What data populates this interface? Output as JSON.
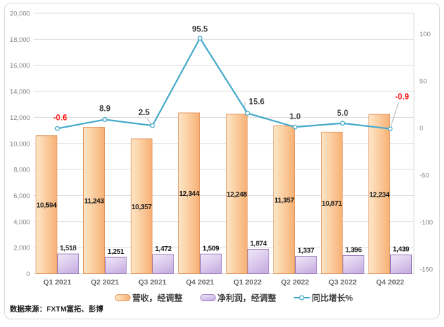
{
  "frame": {
    "background": "#ffffff",
    "border_color": "#d9d9d9"
  },
  "chart_data": {
    "type": "bar",
    "subtype": "combo-bar-line-dual-axis",
    "categories": [
      "Q1 2021",
      "Q2 2021",
      "Q3 2021",
      "Q4 2021",
      "Q1 2022",
      "Q2 2022",
      "Q3 2022",
      "Q4 2022"
    ],
    "series": [
      {
        "name": "营收，经调整",
        "type": "bar",
        "axis": "left",
        "values": [
          10594,
          11243,
          10357,
          12344,
          12248,
          11357,
          10871,
          12234
        ],
        "labels": [
          "10,594",
          "11,243",
          "10,357",
          "12,344",
          "12,248",
          "11,357",
          "10,871",
          "12,234"
        ],
        "fill_from": "#fde6c8",
        "fill_mid": "#fbcfa2",
        "fill_to": "#f7b075",
        "border": "#e2945b"
      },
      {
        "name": "净利润，经调整",
        "type": "bar",
        "axis": "left",
        "values": [
          1518,
          1251,
          1472,
          1509,
          1874,
          1337,
          1396,
          1439
        ],
        "labels": [
          "1,518",
          "1,251",
          "1,472",
          "1,509",
          "1,874",
          "1,337",
          "1,396",
          "1,439"
        ],
        "fill_from": "#efe8f7",
        "fill_mid": "#ddccee",
        "fill_to": "#c9b2e2",
        "border": "#9a7cbe"
      },
      {
        "name": "同比增长%",
        "type": "line",
        "axis": "right",
        "color": "#45a9c9",
        "values": [
          -0.6,
          8.9,
          2.5,
          95.5,
          15.6,
          1.0,
          5.0,
          -0.9
        ],
        "labels": [
          "-0.6",
          "8.9",
          "2.5",
          "95.5",
          "15.6",
          "1.0",
          "5.0",
          "-0.9"
        ],
        "label_colors": [
          "#ff0000",
          "#404040",
          "#404040",
          "#404040",
          "#404040",
          "#404040",
          "#404040",
          "#ff0000"
        ]
      }
    ],
    "left_axis": {
      "min": 0,
      "max": 20000,
      "step": 2000,
      "tick_labels": [
        "20,000",
        "18,000",
        "16,000",
        "14,000",
        "12,000",
        "10,000",
        "8,000",
        "6,000",
        "4,000",
        "2,000",
        "0"
      ]
    },
    "right_axis": {
      "tick_labels": [
        "100",
        "50",
        "0",
        "-50",
        "-100",
        "-150"
      ],
      "tick_values": [
        100,
        50,
        0,
        -50,
        -100,
        -150
      ],
      "display_min": -155,
      "display_max": 122
    },
    "grid": true,
    "legend_position": "bottom",
    "source": "数据来源：FXTM富拓、彭博"
  }
}
